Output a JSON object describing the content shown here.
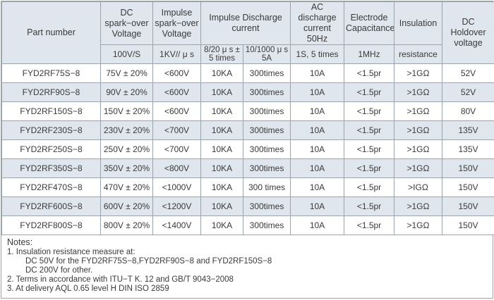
{
  "headers": {
    "part_number": "Part number",
    "dc_spark": "DC spark−over Voltage",
    "impulse_spark": "Impulse spark−over Voltage",
    "impulse_discharge": "Impulse Discharge current",
    "ac_discharge": "AC discharge current 50Hz",
    "electrode_cap": "Electrode Capacitance",
    "insulation": "Insulation",
    "insulation_sub": "resistance",
    "dc_holdover": "DC Holdover voltage"
  },
  "subheaders": {
    "dc_spark": "100V/S",
    "impulse_spark": "1KV// μ s",
    "impulse_a": "8/20 μ s ± 5 times",
    "impulse_b": "10/1000 μ s 5A",
    "ac_discharge": "1S, 5 times",
    "electrode_cap": "1MHz"
  },
  "rows": [
    {
      "part": "FYD2RF75S−8",
      "dc": "75V ± 20%",
      "imp": "<600V",
      "i820": "10KA",
      "i10": "300times",
      "ac": "10A",
      "cap": "<1.5pr",
      "ins": ">1GΩ",
      "hold": "52V"
    },
    {
      "part": "FYD2RF90S−8",
      "dc": "90V ± 20%",
      "imp": "<600V",
      "i820": "10KA",
      "i10": "300times",
      "ac": "10A",
      "cap": "<1.5pr",
      "ins": ">1GΩ",
      "hold": "52V"
    },
    {
      "part": "FYD2RF150S−8",
      "dc": "150V ± 20%",
      "imp": "<600V",
      "i820": "10KA",
      "i10": "300times",
      "ac": "10A",
      "cap": "<1.5pr",
      "ins": ">1GΩ",
      "hold": "80V"
    },
    {
      "part": "FYD2RF230S−8",
      "dc": "230V ± 20%",
      "imp": "<700V",
      "i820": "10KA",
      "i10": "300times",
      "ac": "10A",
      "cap": "<1.5pr",
      "ins": ">1GΩ",
      "hold": "135V"
    },
    {
      "part": "FYD2RF250S−8",
      "dc": "250V ± 20%",
      "imp": "<700V",
      "i820": "10KA",
      "i10": "300times",
      "ac": "10A",
      "cap": "<1.5pr",
      "ins": ">1GΩ",
      "hold": "135V"
    },
    {
      "part": "FYD2RF350S−8",
      "dc": "350V ± 20%",
      "imp": "<800V",
      "i820": "10KA",
      "i10": "300times",
      "ac": "10A",
      "cap": "<1.5pr",
      "ins": ">1GΩ",
      "hold": "150V"
    },
    {
      "part": "FYD2RF470S−8",
      "dc": "470V ± 20%",
      "imp": "<1000V",
      "i820": "10KA",
      "i10": "300 times",
      "ac": "10A",
      "cap": "<1.5pr",
      "ins": ">IGΩ",
      "hold": "150V"
    },
    {
      "part": "FYD2RF600S−8",
      "dc": "600V ± 20%",
      "imp": "<1200V",
      "i820": "10KA",
      "i10": "300times",
      "ac": "10A",
      "cap": "<1.5pr",
      "ins": ">1GΩ",
      "hold": "150V"
    },
    {
      "part": "FYD2RF800S−8",
      "dc": "800V ± 20%",
      "imp": "<1400V",
      "i820": "10KA",
      "i10": "300times",
      "ac": "10A",
      "cap": "<1.5pr",
      "ins": ">1GΩ",
      "hold": "150V"
    }
  ],
  "notes": {
    "title": "Notes:",
    "n1": "1.  Insulation resistance measure at:",
    "n1a": "DC 50V for the FYD2RF75S−8,FYD2RF90S−8 and FYD2RF150S−8",
    "n1b": "DC 200V for other.",
    "n2": "2.  Terms in accordance with ITU−T K. 12 and GB/T 9043−2008",
    "n3": "3.  At delivery  AQL 0.65 level H DIN ISO 2859"
  },
  "colors": {
    "header_bg": "#dfe6ee",
    "alt_row_bg": "#dfe6ee",
    "border": "#9aa4ad",
    "text": "#3a3a3a"
  }
}
